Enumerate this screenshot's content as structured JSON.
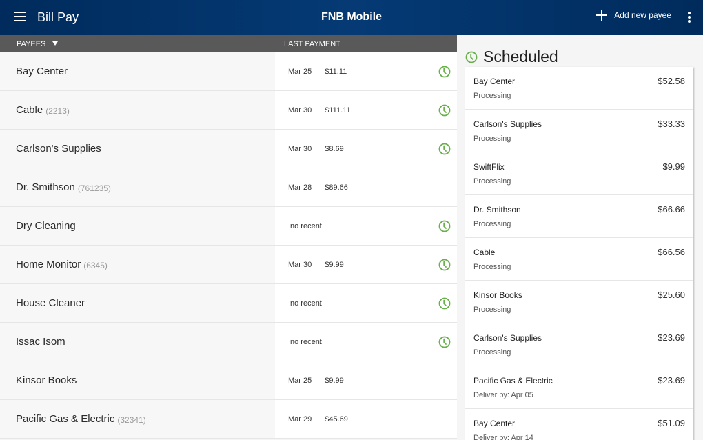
{
  "header": {
    "title": "Bill Pay",
    "app_name": "FNB Mobile",
    "add_payee_label": "Add new payee"
  },
  "columns": {
    "payees": "PAYEES",
    "last_payment": "LAST PAYMENT"
  },
  "colors": {
    "header_bg": "#002b5c",
    "accent_green": "#6ab04c",
    "column_header_bg": "#595959"
  },
  "payees": [
    {
      "name": "Bay Center",
      "account": "",
      "date": "Mar 25",
      "amount": "$11.11",
      "no_recent": "",
      "scheduled": true
    },
    {
      "name": "Cable",
      "account": "(2213)",
      "date": "Mar 30",
      "amount": "$111.11",
      "no_recent": "",
      "scheduled": true
    },
    {
      "name": "Carlson's Supplies",
      "account": "",
      "date": "Mar 30",
      "amount": "$8.69",
      "no_recent": "",
      "scheduled": true
    },
    {
      "name": "Dr. Smithson",
      "account": "(761235)",
      "date": "Mar 28",
      "amount": "$89.66",
      "no_recent": "",
      "scheduled": false
    },
    {
      "name": "Dry Cleaning",
      "account": "",
      "date": "",
      "amount": "",
      "no_recent": "no recent",
      "scheduled": true
    },
    {
      "name": "Home Monitor",
      "account": "(6345)",
      "date": "Mar 30",
      "amount": "$9.99",
      "no_recent": "",
      "scheduled": true
    },
    {
      "name": "House Cleaner",
      "account": "",
      "date": "",
      "amount": "",
      "no_recent": "no recent",
      "scheduled": true
    },
    {
      "name": "Issac Isom",
      "account": "",
      "date": "",
      "amount": "",
      "no_recent": "no recent",
      "scheduled": true
    },
    {
      "name": "Kinsor Books",
      "account": "",
      "date": "Mar 25",
      "amount": "$9.99",
      "no_recent": "",
      "scheduled": false
    },
    {
      "name": "Pacific Gas & Electric",
      "account": "(32341)",
      "date": "Mar 29",
      "amount": "$45.69",
      "no_recent": "",
      "scheduled": false
    }
  ],
  "scheduled": {
    "title": "Scheduled",
    "items": [
      {
        "name": "Bay Center",
        "status": "Processing",
        "amount": "$52.58"
      },
      {
        "name": "Carlson's Supplies",
        "status": "Processing",
        "amount": "$33.33"
      },
      {
        "name": "SwiftFlix",
        "status": "Processing",
        "amount": "$9.99"
      },
      {
        "name": "Dr. Smithson",
        "status": "Processing",
        "amount": "$66.66"
      },
      {
        "name": "Cable",
        "status": "Processing",
        "amount": "$66.56"
      },
      {
        "name": "Kinsor Books",
        "status": "Processing",
        "amount": "$25.60"
      },
      {
        "name": "Carlson's Supplies",
        "status": "Processing",
        "amount": "$23.69"
      },
      {
        "name": "Pacific Gas & Electric",
        "status": "Deliver by: Apr 05",
        "amount": "$23.69"
      },
      {
        "name": "Bay Center",
        "status": "Deliver by: Apr 14",
        "amount": "$51.09"
      }
    ]
  }
}
